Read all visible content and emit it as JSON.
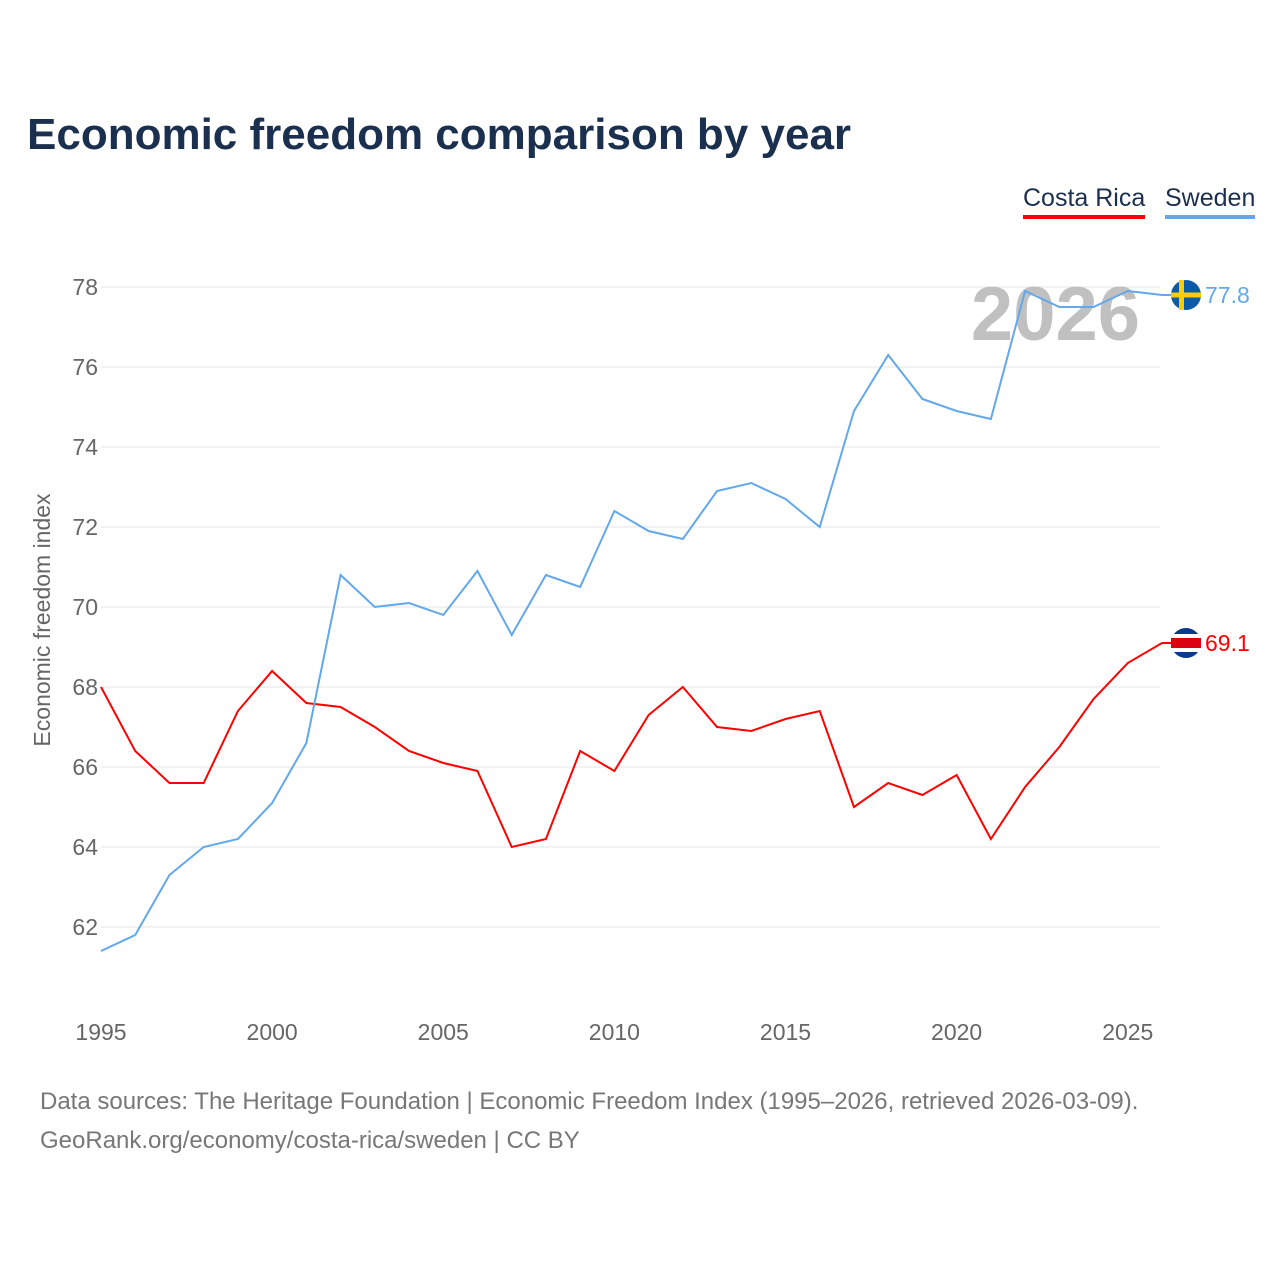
{
  "title": "Economic freedom comparison by year",
  "legend": {
    "costa_rica": "Costa Rica",
    "sweden": "Sweden"
  },
  "footer": {
    "line1": "Data sources: The Heritage Foundation | Economic Freedom Index (1995–2026, retrieved 2026-03-09).",
    "line2": "GeoRank.org/economy/costa-rica/sweden | CC BY"
  },
  "chart_data": {
    "type": "line",
    "title": "Economic freedom comparison by year",
    "ylabel": "Economic freedom index",
    "xlabel": "",
    "year_watermark": "2026",
    "xlim": [
      1995,
      2026
    ],
    "ylim": [
      60,
      78.5
    ],
    "yticks": [
      62,
      64,
      66,
      68,
      70,
      72,
      74,
      76,
      78
    ],
    "xticks": [
      1995,
      2000,
      2005,
      2010,
      2015,
      2020,
      2025
    ],
    "x": [
      1995,
      1996,
      1997,
      1998,
      1999,
      2000,
      2001,
      2002,
      2003,
      2004,
      2005,
      2006,
      2007,
      2008,
      2009,
      2010,
      2011,
      2012,
      2013,
      2014,
      2015,
      2016,
      2017,
      2018,
      2019,
      2020,
      2021,
      2022,
      2023,
      2024,
      2025,
      2026
    ],
    "series": [
      {
        "name": "Costa Rica",
        "color": "#ff0000",
        "end_label": "69.1",
        "values": [
          68.0,
          66.4,
          65.6,
          65.6,
          67.4,
          68.4,
          67.6,
          67.5,
          67.0,
          66.4,
          66.1,
          65.9,
          64.0,
          64.2,
          66.4,
          65.9,
          67.3,
          68.0,
          67.0,
          66.9,
          67.2,
          67.4,
          65.0,
          65.6,
          65.3,
          65.8,
          64.2,
          65.5,
          66.5,
          67.7,
          68.6,
          69.1
        ]
      },
      {
        "name": "Sweden",
        "color": "#62a8ea",
        "end_label": "77.8",
        "values": [
          61.4,
          61.8,
          63.3,
          64.0,
          64.2,
          65.1,
          66.6,
          70.8,
          70.0,
          70.1,
          69.8,
          70.9,
          69.3,
          70.8,
          70.5,
          72.4,
          71.9,
          71.7,
          72.9,
          73.1,
          72.7,
          72.0,
          74.9,
          76.3,
          75.2,
          74.9,
          74.7,
          77.9,
          77.5,
          77.5,
          77.9,
          77.8
        ]
      }
    ]
  }
}
